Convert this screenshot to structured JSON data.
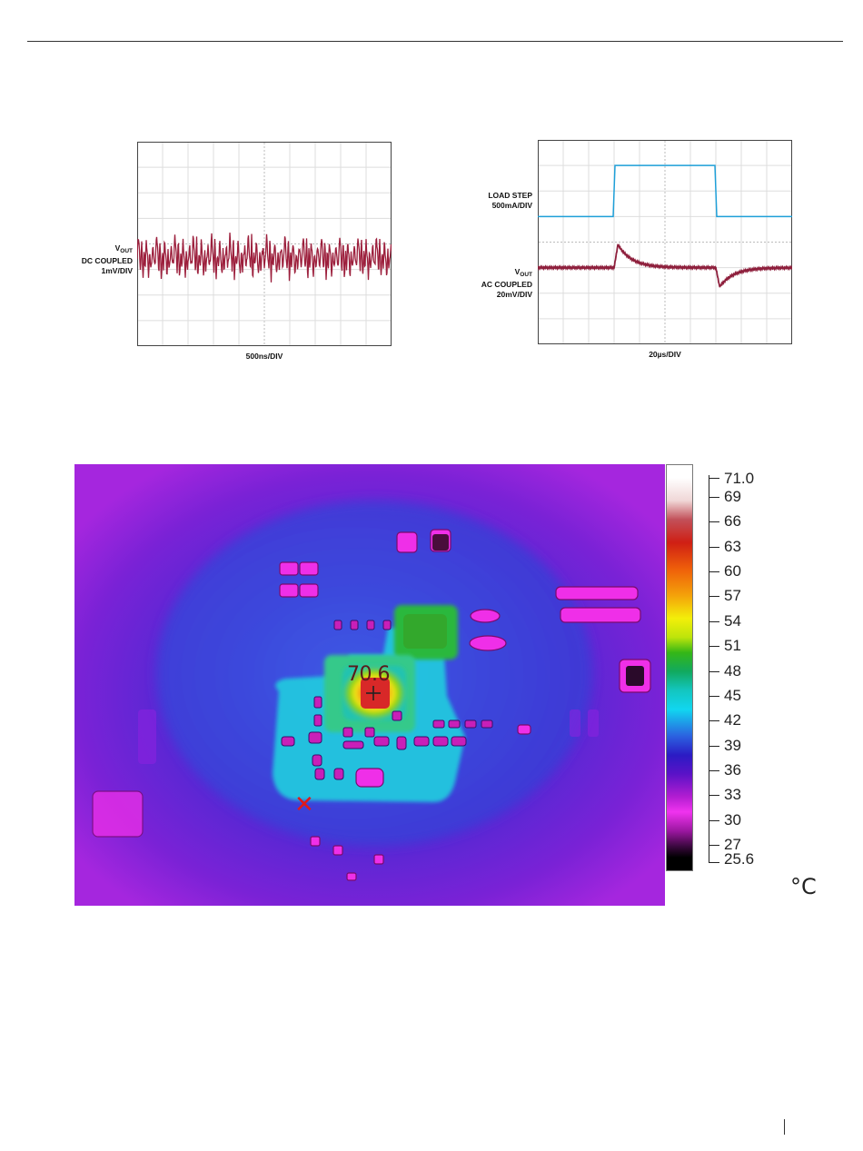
{
  "chart_data": [
    {
      "type": "line",
      "title": "",
      "xlabel": "500ns/DIV",
      "ylabel_lines": [
        "DC COUPLED",
        "1mV/DIV"
      ],
      "ylabel_main": "V",
      "ylabel_sub": "OUT",
      "grid": true,
      "series": [
        {
          "color": "#9c1f3c",
          "x_divisions": 10,
          "y_divisions": 8,
          "period_div": 0.72,
          "offset_div": 4.6,
          "amplitude_div": 1.9,
          "values": [
            0.0,
            1.0,
            0.2,
            -0.6,
            0.9,
            -0.9,
            0.4,
            -0.3,
            0.8,
            0.1,
            -0.8,
            0.3,
            -0.5,
            0.2,
            0.6,
            -0.2
          ]
        }
      ]
    },
    {
      "type": "line",
      "title": "",
      "xlabel": "20µs/DIV",
      "grid": true,
      "channel1": {
        "lines": [
          "LOAD STEP",
          "500mA/DIV"
        ]
      },
      "channel2": {
        "main": "V",
        "sub": "OUT",
        "lines": [
          "AC COUPLED",
          "20mV/DIV"
        ]
      },
      "series": [
        {
          "color": "#1e9fd8",
          "x_divisions": 10,
          "y_divisions": 8,
          "low_div": 3.0,
          "high_div": 1.0,
          "step_up_div": 3.0,
          "step_down_div": 7.0
        },
        {
          "color": "#8e1f3c",
          "x_divisions": 10,
          "y_divisions": 8,
          "baseline_div": 5.0,
          "overshoot_div": 0.9,
          "undershoot_div": 0.75,
          "step_up_div": 3.0,
          "step_down_div": 7.0
        }
      ]
    },
    {
      "type": "heatmap",
      "title": "",
      "hotspot_label": "70.6",
      "unit": "°C",
      "scale_max": "71.0",
      "scale_min": "25.6",
      "ticks": [
        "69",
        "66",
        "63",
        "60",
        "57",
        "54",
        "51",
        "48",
        "45",
        "42",
        "39",
        "36",
        "33",
        "30",
        "27"
      ]
    }
  ]
}
